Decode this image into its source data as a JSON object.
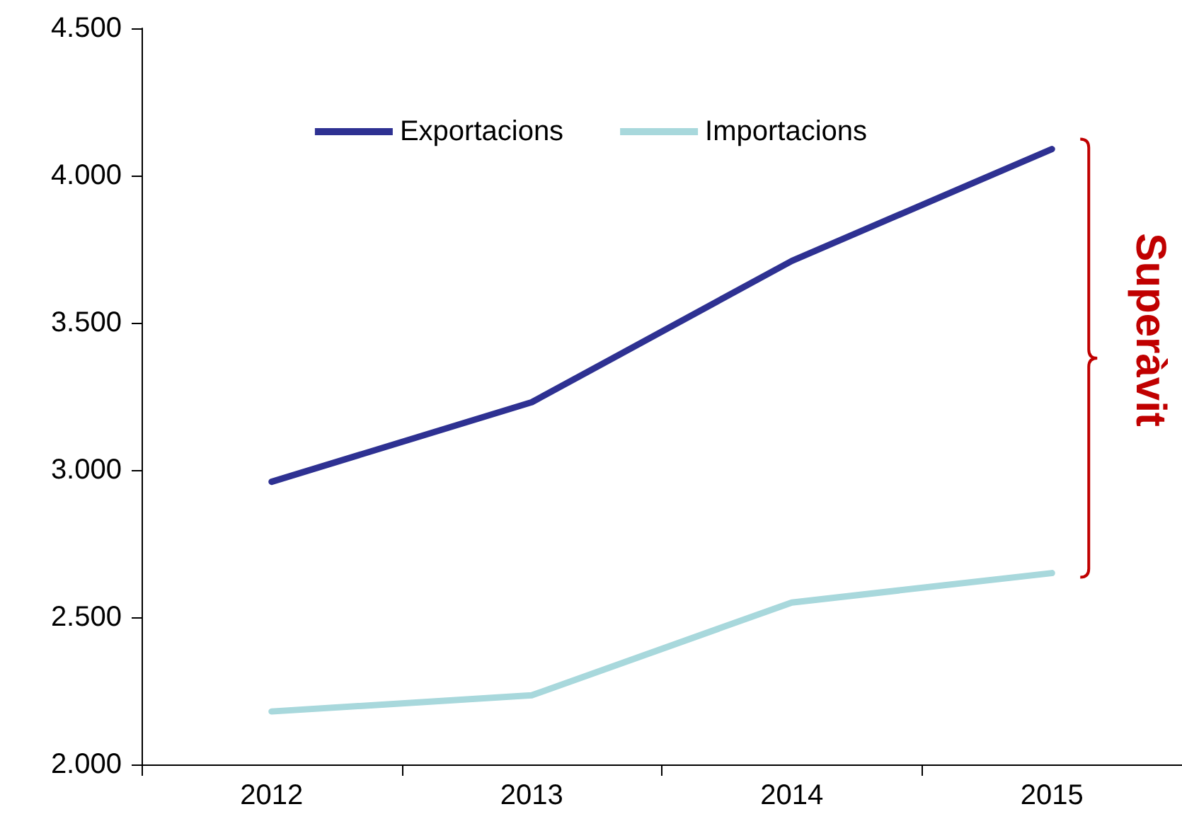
{
  "chart_data": {
    "type": "line",
    "categories": [
      "2012",
      "2013",
      "2014",
      "2015"
    ],
    "series": [
      {
        "name": "Exportacions",
        "color": "#2e3192",
        "values": [
          2960,
          3230,
          3710,
          4090
        ]
      },
      {
        "name": "Importacions",
        "color": "#a8d8dc",
        "values": [
          2180,
          2235,
          2550,
          2650
        ]
      }
    ],
    "ylim": [
      2000,
      4500
    ],
    "yticks": [
      {
        "value": 2000,
        "label": "2.000"
      },
      {
        "value": 2500,
        "label": "2.500"
      },
      {
        "value": 3000,
        "label": "3.000"
      },
      {
        "value": 3500,
        "label": "3.500"
      },
      {
        "value": 4000,
        "label": "4.000"
      },
      {
        "value": 4500,
        "label": "4.500"
      }
    ],
    "annotations": [
      "Superàvit"
    ],
    "grid": false,
    "legend": "top",
    "marker": "none",
    "line_style": "solid"
  }
}
